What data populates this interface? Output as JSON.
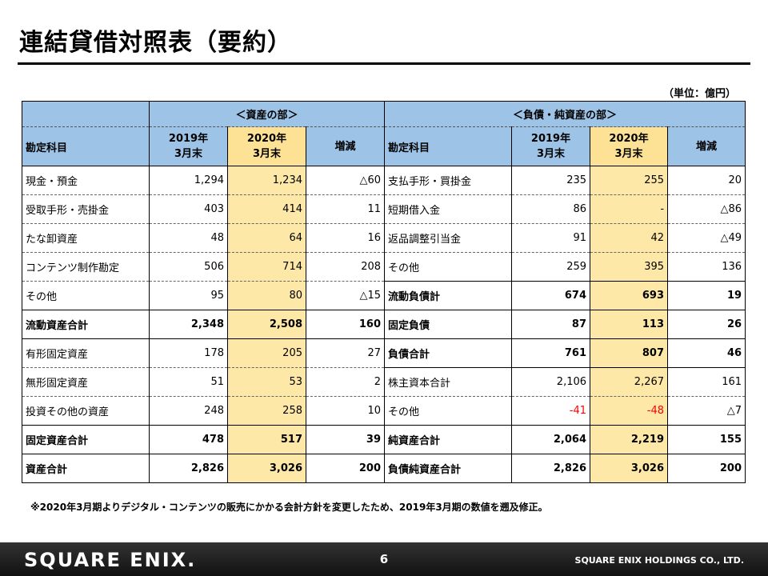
{
  "title": "連結貸借対照表（要約）",
  "unit_label": "（単位：億円）",
  "sections": {
    "assets": "＜資産の部＞",
    "liabilities": "＜負債・純資産の部＞"
  },
  "headers": {
    "item": "勘定科目",
    "y2019_line1": "2019年",
    "y2019_line2": "3月末",
    "y2020_line1": "2020年",
    "y2020_line2": "3月末",
    "change": "増減"
  },
  "rows": [
    {
      "a_label": "現金・預金",
      "a_2019": "1,294",
      "a_2020": "1,234",
      "a_chg": "△60",
      "l_label": "支払手形・買掛金",
      "l_2019": "235",
      "l_2020": "255",
      "l_chg": "20"
    },
    {
      "a_label": "受取手形・売掛金",
      "a_2019": "403",
      "a_2020": "414",
      "a_chg": "11",
      "l_label": "短期借入金",
      "l_2019": "86",
      "l_2020": "-",
      "l_chg": "△86"
    },
    {
      "a_label": "たな卸資産",
      "a_2019": "48",
      "a_2020": "64",
      "a_chg": "16",
      "l_label": "返品調整引当金",
      "l_2019": "91",
      "l_2020": "42",
      "l_chg": "△49"
    },
    {
      "a_label": "コンテンツ制作勘定",
      "a_2019": "506",
      "a_2020": "714",
      "a_chg": "208",
      "l_label": "その他",
      "l_2019": "259",
      "l_2020": "395",
      "l_chg": "136"
    },
    {
      "a_label": "その他",
      "a_2019": "95",
      "a_2020": "80",
      "a_chg": "△15",
      "l_label": "流動負債計",
      "l_2019": "674",
      "l_2020": "693",
      "l_chg": "19"
    },
    {
      "a_label": "流動資産合計",
      "a_2019": "2,348",
      "a_2020": "2,508",
      "a_chg": "160",
      "l_label": "固定負債",
      "l_2019": "87",
      "l_2020": "113",
      "l_chg": "26"
    },
    {
      "a_label": "有形固定資産",
      "a_2019": "178",
      "a_2020": "205",
      "a_chg": "27",
      "l_label": "負債合計",
      "l_2019": "761",
      "l_2020": "807",
      "l_chg": "46"
    },
    {
      "a_label": "無形固定資産",
      "a_2019": "51",
      "a_2020": "53",
      "a_chg": "2",
      "l_label": "株主資本合計",
      "l_2019": "2,106",
      "l_2020": "2,267",
      "l_chg": "161"
    },
    {
      "a_label": "投資その他の資産",
      "a_2019": "248",
      "a_2020": "258",
      "a_chg": "10",
      "l_label": "その他",
      "l_2019": "-41",
      "l_2020": "-48",
      "l_chg": "△7"
    },
    {
      "a_label": "固定資産合計",
      "a_2019": "478",
      "a_2020": "517",
      "a_chg": "39",
      "l_label": "純資産合計",
      "l_2019": "2,064",
      "l_2020": "2,219",
      "l_chg": "155"
    },
    {
      "a_label": "資産合計",
      "a_2019": "2,826",
      "a_2020": "3,026",
      "a_chg": "200",
      "l_label": "負債純資産合計",
      "l_2019": "2,826",
      "l_2020": "3,026",
      "l_chg": "200"
    }
  ],
  "note": "※2020年3月期よりデジタル・コンテンツの販売にかかる会計方針を変更したため、2019年3月期の数値を遡及修正。",
  "footer": {
    "logo": "SQUARE ENIX.",
    "page_number": "6",
    "company": "SQUARE ENIX HOLDINGS CO., LTD."
  },
  "colors": {
    "header_blue": "#9dc3e6",
    "highlight_yellow": "#fde8a8",
    "negative_red": "#ff0000"
  }
}
